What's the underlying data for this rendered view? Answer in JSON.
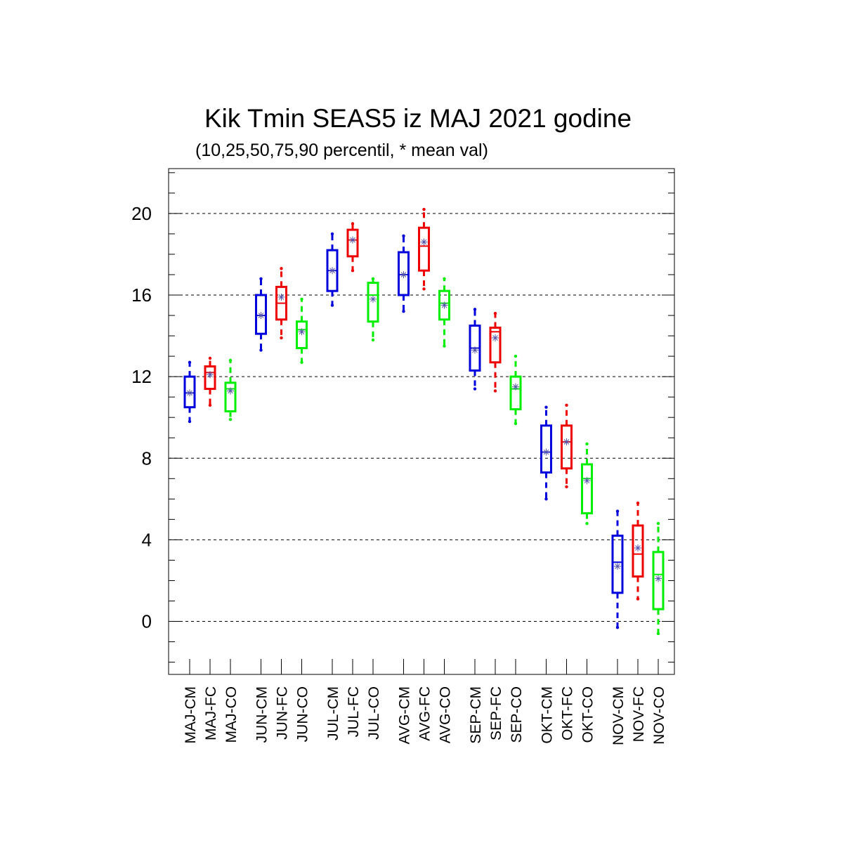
{
  "chart_data": {
    "type": "boxplot",
    "title": "Kik Tmin SEAS5 iz MAJ 2021 godine",
    "subtitle": "(10,25,50,75,90 percentil, * mean val)",
    "ylim": [
      -2.6,
      22.2
    ],
    "yticks": [
      0,
      4,
      8,
      12,
      16,
      20
    ],
    "grid": "horizontal dashed",
    "colors": {
      "CM": "#0000dd",
      "FC": "#ee0000",
      "CO": "#00ee00",
      "mean_marker": "#5555aa"
    },
    "series": [
      {
        "label": "MAJ-CM",
        "type": "CM",
        "p10": 9.8,
        "p25": 10.5,
        "p50": 11.2,
        "p75": 12.0,
        "p90": 12.7,
        "mean": 11.2
      },
      {
        "label": "MAJ-FC",
        "type": "FC",
        "p10": 10.6,
        "p25": 11.4,
        "p50": 12.2,
        "p75": 12.5,
        "p90": 12.9,
        "mean": 12.1
      },
      {
        "label": "MAJ-CO",
        "type": "CO",
        "p10": 9.9,
        "p25": 10.3,
        "p50": 11.4,
        "p75": 11.7,
        "p90": 12.8,
        "mean": 11.3
      },
      {
        "label": "JUN-CM",
        "type": "CM",
        "p10": 13.3,
        "p25": 14.1,
        "p50": 15.0,
        "p75": 16.0,
        "p90": 16.8,
        "mean": 15.0
      },
      {
        "label": "JUN-FC",
        "type": "FC",
        "p10": 13.9,
        "p25": 14.8,
        "p50": 15.6,
        "p75": 16.4,
        "p90": 17.3,
        "mean": 15.9
      },
      {
        "label": "JUN-CO",
        "type": "CO",
        "p10": 12.7,
        "p25": 13.4,
        "p50": 14.3,
        "p75": 14.7,
        "p90": 15.8,
        "mean": 14.2
      },
      {
        "label": "JUL-CM",
        "type": "CM",
        "p10": 15.5,
        "p25": 16.2,
        "p50": 17.2,
        "p75": 18.2,
        "p90": 19.0,
        "mean": 17.2
      },
      {
        "label": "JUL-FC",
        "type": "FC",
        "p10": 17.2,
        "p25": 17.9,
        "p50": 18.7,
        "p75": 19.2,
        "p90": 19.5,
        "mean": 18.7
      },
      {
        "label": "JUL-CO",
        "type": "CO",
        "p10": 13.8,
        "p25": 14.7,
        "p50": 16.0,
        "p75": 16.6,
        "p90": 16.8,
        "mean": 15.8
      },
      {
        "label": "AVG-CM",
        "type": "CM",
        "p10": 15.2,
        "p25": 16.0,
        "p50": 17.0,
        "p75": 18.1,
        "p90": 18.9,
        "mean": 17.0
      },
      {
        "label": "AVG-FC",
        "type": "FC",
        "p10": 16.3,
        "p25": 17.2,
        "p50": 18.4,
        "p75": 19.3,
        "p90": 20.2,
        "mean": 18.6
      },
      {
        "label": "AVG-CO",
        "type": "CO",
        "p10": 13.5,
        "p25": 14.8,
        "p50": 15.6,
        "p75": 16.2,
        "p90": 16.8,
        "mean": 15.5
      },
      {
        "label": "SEP-CM",
        "type": "CM",
        "p10": 11.4,
        "p25": 12.3,
        "p50": 13.4,
        "p75": 14.5,
        "p90": 15.3,
        "mean": 13.3
      },
      {
        "label": "SEP-FC",
        "type": "FC",
        "p10": 11.3,
        "p25": 12.7,
        "p50": 14.2,
        "p75": 14.4,
        "p90": 15.1,
        "mean": 13.9
      },
      {
        "label": "SEP-CO",
        "type": "CO",
        "p10": 9.7,
        "p25": 10.4,
        "p50": 11.4,
        "p75": 12.0,
        "p90": 13.0,
        "mean": 11.5
      },
      {
        "label": "OKT-CM",
        "type": "CM",
        "p10": 6.0,
        "p25": 7.3,
        "p50": 8.3,
        "p75": 9.6,
        "p90": 10.5,
        "mean": 8.3
      },
      {
        "label": "OKT-FC",
        "type": "FC",
        "p10": 6.6,
        "p25": 7.5,
        "p50": 8.8,
        "p75": 9.6,
        "p90": 10.6,
        "mean": 8.8
      },
      {
        "label": "OKT-CO",
        "type": "CO",
        "p10": 4.8,
        "p25": 5.3,
        "p50": 7.0,
        "p75": 7.7,
        "p90": 8.7,
        "mean": 6.9
      },
      {
        "label": "NOV-CM",
        "type": "CM",
        "p10": -0.3,
        "p25": 1.4,
        "p50": 2.9,
        "p75": 4.2,
        "p90": 5.4,
        "mean": 2.7
      },
      {
        "label": "NOV-FC",
        "type": "FC",
        "p10": 1.1,
        "p25": 2.2,
        "p50": 3.3,
        "p75": 4.7,
        "p90": 5.8,
        "mean": 3.6
      },
      {
        "label": "NOV-CO",
        "type": "CO",
        "p10": -0.6,
        "p25": 0.6,
        "p50": 2.3,
        "p75": 3.4,
        "p90": 4.8,
        "mean": 2.1
      }
    ]
  }
}
